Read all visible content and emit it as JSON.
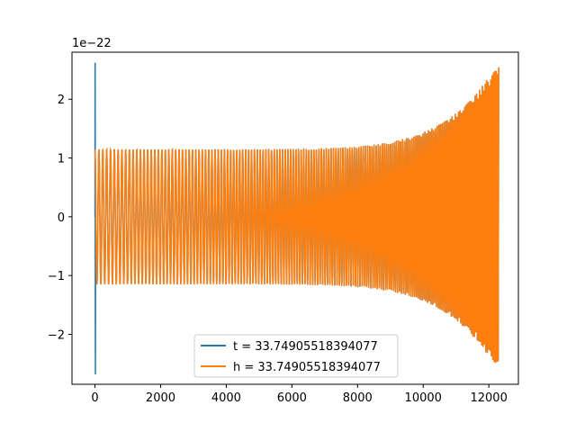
{
  "chart_data": {
    "type": "line",
    "title": "",
    "xlabel": "",
    "ylabel": "",
    "xlim": [
      -700,
      12900
    ],
    "ylim": [
      -2.85e-22,
      2.8e-22
    ],
    "y_scale_label": "1e−22",
    "x_ticks": [
      0,
      2000,
      4000,
      6000,
      8000,
      10000,
      12000
    ],
    "x_tick_labels": [
      "0",
      "2000",
      "4000",
      "6000",
      "8000",
      "10000",
      "12000"
    ],
    "y_ticks": [
      -2,
      -1,
      0,
      1,
      2
    ],
    "y_tick_labels": [
      "−2",
      "−1",
      "0",
      "1",
      "2"
    ],
    "grid": false,
    "legend_position": "bottom-center",
    "waveform": {
      "x_start": 0,
      "x_end": 12300,
      "base_amplitude": 1.15e-22,
      "peak_amplitude": 2.65e-22,
      "initial_cycle_period": 120,
      "end_cycle_period": 40
    },
    "series": [
      {
        "name": "t = 33.74905518394077",
        "color": "#1f77b4",
        "values_summary": {
          "x_min": 0,
          "x_max": 12300,
          "y_min": -2.68e-22,
          "y_max": 2.62e-22
        }
      },
      {
        "name": "h = 33.74905518394077",
        "color": "#ff7f0e",
        "values_summary": {
          "x_min": 0,
          "x_max": 12300,
          "y_min": -2.68e-22,
          "y_max": 2.65e-22
        }
      }
    ]
  }
}
